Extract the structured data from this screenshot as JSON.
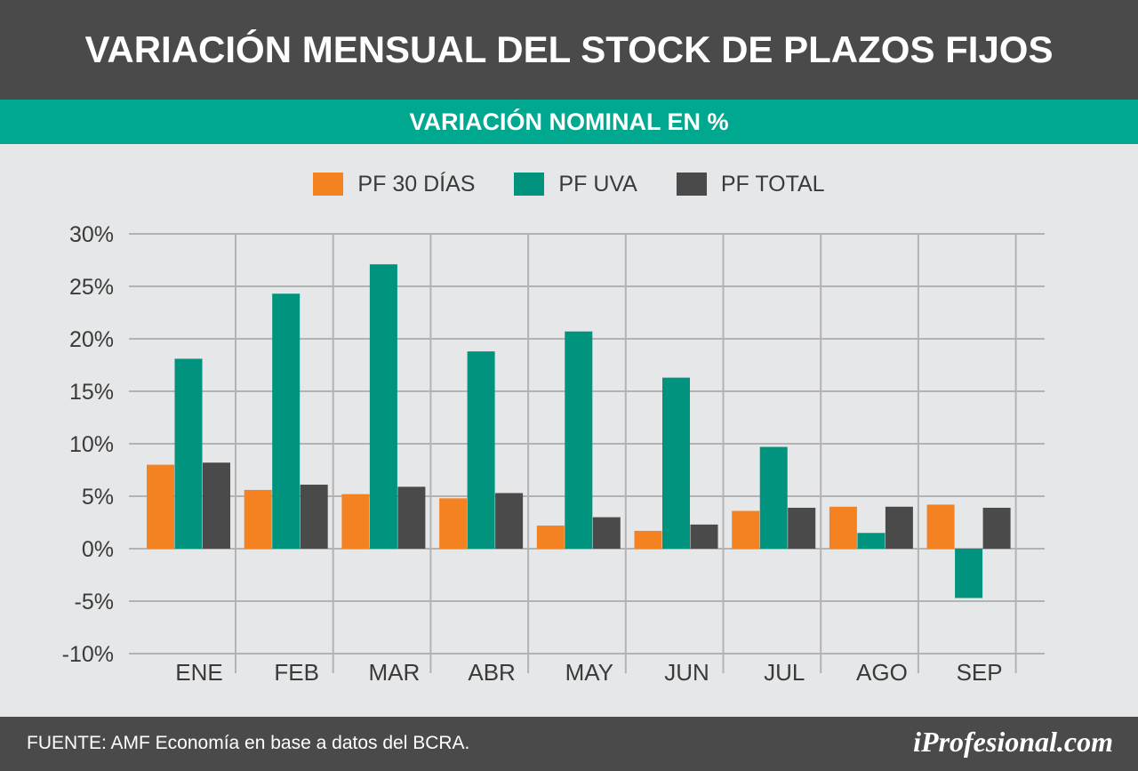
{
  "header": {
    "title": "VARIACIÓN MENSUAL DEL STOCK DE PLAZOS FIJOS",
    "subtitle": "VARIACIÓN NOMINAL EN %"
  },
  "colors": {
    "header_bg": "#4a4a4a",
    "subtitle_bg": "#00a88f",
    "background": "#e6e7e8",
    "grid": "#b3b3b3"
  },
  "chart_data": {
    "type": "bar",
    "title": "VARIACIÓN MENSUAL DEL STOCK DE PLAZOS FIJOS",
    "subtitle": "VARIACIÓN NOMINAL EN %",
    "categories": [
      "ENE",
      "FEB",
      "MAR",
      "ABR",
      "MAY",
      "JUN",
      "JUL",
      "AGO",
      "SEP"
    ],
    "series": [
      {
        "name": "PF 30 DÍAS",
        "color": "#f58220",
        "values": [
          8.0,
          5.6,
          5.2,
          4.8,
          2.2,
          1.7,
          3.6,
          4.0,
          4.2
        ]
      },
      {
        "name": "PF UVA",
        "color": "#00937d",
        "values": [
          18.1,
          24.3,
          27.1,
          18.8,
          20.7,
          16.3,
          9.7,
          1.5,
          -4.7
        ]
      },
      {
        "name": "PF TOTAL",
        "color": "#4a4a4a",
        "values": [
          8.2,
          6.1,
          5.9,
          5.3,
          3.0,
          2.3,
          3.9,
          4.0,
          3.9
        ]
      }
    ],
    "yticks": [
      "30%",
      "25%",
      "20%",
      "15%",
      "10%",
      "5%",
      "0%",
      "-5%",
      "-10%"
    ],
    "ylim": [
      -10,
      30
    ],
    "ystep": 5,
    "grid": true,
    "legend": "top-center"
  },
  "footer": {
    "source": "FUENTE: AMF Economía en base a datos del BCRA.",
    "brand": "iProfesional.com"
  }
}
